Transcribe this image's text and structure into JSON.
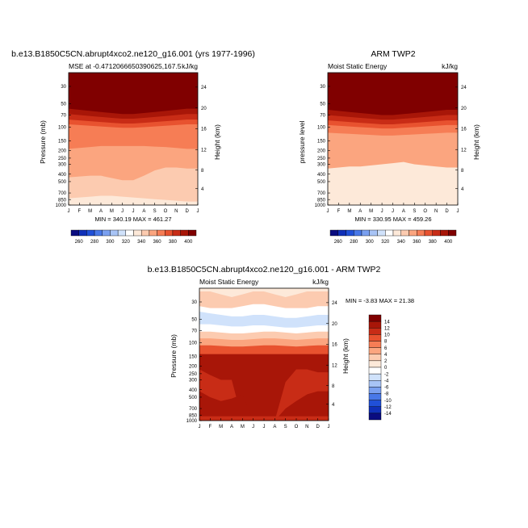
{
  "colors": {
    "bg": "#ffffff",
    "axis": "#000000",
    "mse_scale": [
      "#0a0c80",
      "#1030b8",
      "#2050d8",
      "#4878e8",
      "#7aa0f0",
      "#a8c4f6",
      "#d0e2fb",
      "#ffffff",
      "#fde9d9",
      "#fccbb0",
      "#fba57f",
      "#f67d55",
      "#e8522f",
      "#c82c16",
      "#a81608",
      "#800000"
    ],
    "diff_scale": [
      "#0a0c80",
      "#1030b8",
      "#2050d8",
      "#4878e8",
      "#7aa0f0",
      "#a8c4f6",
      "#d0e2fb",
      "#ffffff",
      "#fde9d9",
      "#fccbb0",
      "#fba57f",
      "#f67d55",
      "#e8522f",
      "#c82c16",
      "#a81608",
      "#800000"
    ]
  },
  "chart_data": [
    {
      "id": "model",
      "type": "heatmap",
      "suptitle": "b.e13.B1850C5CN.abrupt4xco2.ne120_g16.001 (yrs 1977-1996)",
      "left_label": "MSE at -0.4712066650390625,167.5",
      "right_label": "kJ/kg",
      "ylabel": "Pressure (mb)",
      "ylabel_right": "Height (km)",
      "x_ticks": [
        "J",
        "F",
        "M",
        "A",
        "M",
        "J",
        "J",
        "A",
        "S",
        "O",
        "N",
        "D",
        "J"
      ],
      "y_ticks": [
        30,
        50,
        70,
        100,
        150,
        200,
        250,
        300,
        400,
        500,
        700,
        850,
        1000
      ],
      "y_ticks_right": [
        24,
        20,
        16,
        12,
        8,
        4
      ],
      "stats": "MIN = 340.19 MAX = 461.27",
      "min": 340.19,
      "max": 461.27,
      "units": "kJ/kg",
      "colorbar_labels": [
        260,
        280,
        300,
        320,
        340,
        360,
        380,
        400
      ],
      "layers": [
        {
          "top_mb": [
            20,
            20,
            20,
            20,
            20,
            20,
            20,
            20,
            20,
            20,
            20,
            20,
            20
          ],
          "level": 15
        },
        {
          "top_mb": [
            58,
            60,
            62,
            64,
            66,
            68,
            68,
            66,
            64,
            62,
            60,
            58,
            58
          ],
          "level": 14
        },
        {
          "top_mb": [
            68,
            70,
            72,
            74,
            76,
            78,
            78,
            76,
            74,
            72,
            70,
            68,
            68
          ],
          "level": 13
        },
        {
          "top_mb": [
            80,
            82,
            84,
            86,
            88,
            90,
            90,
            88,
            86,
            84,
            82,
            80,
            80
          ],
          "level": 12
        },
        {
          "top_mb": [
            92,
            94,
            96,
            98,
            100,
            102,
            102,
            100,
            98,
            96,
            94,
            92,
            92
          ],
          "level": 11
        },
        {
          "top_mb": [
            190,
            185,
            180,
            175,
            175,
            175,
            175,
            175,
            178,
            180,
            185,
            190,
            190
          ],
          "level": 10
        },
        {
          "top_mb": [
            440,
            430,
            420,
            420,
            450,
            480,
            480,
            420,
            360,
            330,
            330,
            340,
            340
          ],
          "level": 9
        },
        {
          "top_mb": [
            820,
            800,
            780,
            760,
            760,
            780,
            800,
            820,
            840,
            860,
            880,
            900,
            900
          ],
          "level": 8
        }
      ]
    },
    {
      "id": "obs",
      "type": "heatmap",
      "suptitle": "ARM TWP2",
      "left_label": "Moist Static Energy",
      "right_label": "kJ/kg",
      "ylabel": "pressure level",
      "ylabel_right": "Height (km)",
      "x_ticks": [
        "J",
        "F",
        "M",
        "A",
        "M",
        "J",
        "J",
        "A",
        "S",
        "O",
        "N",
        "D",
        "J"
      ],
      "y_ticks": [
        30,
        50,
        70,
        100,
        150,
        200,
        250,
        300,
        400,
        500,
        700,
        850,
        1000
      ],
      "y_ticks_right": [
        24,
        20,
        16,
        12,
        8,
        4
      ],
      "stats": "MIN = 330.95 MAX = 459.26",
      "min": 330.95,
      "max": 459.26,
      "units": "kJ/kg",
      "colorbar_labels": [
        260,
        280,
        300,
        320,
        340,
        360,
        380,
        400
      ],
      "layers": [
        {
          "top_mb": [
            20,
            20,
            20,
            20,
            20,
            20,
            20,
            20,
            20,
            20,
            20,
            20,
            20
          ],
          "level": 15
        },
        {
          "top_mb": [
            60,
            62,
            64,
            66,
            68,
            70,
            70,
            68,
            66,
            64,
            62,
            60,
            60
          ],
          "level": 14
        },
        {
          "top_mb": [
            70,
            72,
            74,
            76,
            78,
            80,
            80,
            78,
            76,
            74,
            72,
            70,
            70
          ],
          "level": 13
        },
        {
          "top_mb": [
            82,
            84,
            86,
            88,
            90,
            92,
            92,
            90,
            88,
            86,
            84,
            82,
            82
          ],
          "level": 12
        },
        {
          "top_mb": [
            94,
            96,
            98,
            100,
            102,
            104,
            104,
            102,
            100,
            98,
            96,
            94,
            94
          ],
          "level": 11
        },
        {
          "top_mb": [
            118,
            120,
            122,
            124,
            126,
            128,
            128,
            126,
            124,
            122,
            120,
            118,
            118
          ],
          "level": 10
        },
        {
          "top_mb": [
            340,
            330,
            320,
            320,
            310,
            300,
            290,
            280,
            300,
            310,
            320,
            330,
            330
          ],
          "level": 8
        },
        {
          "top_mb": [
            880,
            880,
            880,
            880,
            880,
            880,
            880,
            880,
            880,
            880,
            880,
            880,
            880
          ],
          "level": 8
        }
      ]
    },
    {
      "id": "diff",
      "type": "heatmap",
      "suptitle": "b.e13.B1850C5CN.abrupt4xco2.ne120_g16.001 - ARM TWP2",
      "left_label": "Moist Static Energy",
      "right_label": "kJ/kg",
      "ylabel": "Pressure (mb)",
      "ylabel_right": "Height (km)",
      "x_ticks": [
        "J",
        "F",
        "M",
        "A",
        "M",
        "J",
        "J",
        "A",
        "S",
        "O",
        "N",
        "D",
        "J"
      ],
      "y_ticks": [
        30,
        50,
        70,
        100,
        150,
        200,
        250,
        300,
        400,
        500,
        700,
        850,
        1000
      ],
      "y_ticks_right": [
        24,
        20,
        16,
        12,
        8,
        4
      ],
      "stats": "MIN =  -3.83 MAX =  21.38",
      "min": -3.83,
      "max": 21.38,
      "units": "kJ/kg",
      "colorbar_labels": [
        14,
        12,
        10,
        8,
        6,
        4,
        2,
        0,
        -2,
        -4,
        -6,
        -8,
        -10,
        -12,
        -14
      ],
      "layers": [
        {
          "top_mb": [
            20,
            20,
            20,
            20,
            20,
            20,
            20,
            20,
            20,
            20,
            20,
            20,
            20
          ],
          "level": 8
        },
        {
          "top_mb": [
            22,
            22,
            24,
            26,
            24,
            22,
            22,
            24,
            26,
            24,
            22,
            22,
            22
          ],
          "level": 9
        },
        {
          "top_mb": [
            34,
            36,
            36,
            36,
            34,
            32,
            32,
            34,
            36,
            36,
            36,
            34,
            34
          ],
          "level": 7
        },
        {
          "top_mb": [
            40,
            42,
            44,
            46,
            46,
            44,
            44,
            46,
            48,
            48,
            46,
            44,
            44
          ],
          "level": 6
        },
        {
          "top_mb": [
            58,
            58,
            60,
            62,
            62,
            60,
            60,
            62,
            64,
            64,
            62,
            60,
            60
          ],
          "level": 7
        },
        {
          "top_mb": [
            72,
            72,
            74,
            76,
            76,
            74,
            72,
            72,
            74,
            76,
            74,
            72,
            72
          ],
          "level": 9
        },
        {
          "top_mb": [
            88,
            88,
            90,
            92,
            92,
            90,
            88,
            88,
            90,
            92,
            90,
            88,
            88
          ],
          "level": 10
        },
        {
          "top_mb": [
            108,
            108,
            110,
            112,
            112,
            110,
            108,
            108,
            110,
            112,
            110,
            108,
            108
          ],
          "level": 12
        },
        {
          "top_mb": [
            140,
            140,
            140,
            140,
            140,
            140,
            140,
            140,
            140,
            140,
            140,
            140,
            140
          ],
          "level": 14
        },
        {
          "top_mb": [
            220,
            260,
            300,
            300,
            1000,
            1000,
            1000,
            1000,
            320,
            220,
            220,
            240,
            240
          ],
          "level": 13
        },
        {
          "top_mb": [
            420,
            500,
            560,
            520,
            460,
            1000,
            1000,
            1000,
            700,
            560,
            460,
            420,
            420
          ],
          "level": 14
        },
        {
          "top_mb": [
            880,
            880,
            880,
            880,
            880,
            880,
            880,
            880,
            880,
            880,
            880,
            880,
            880
          ],
          "level": 13
        }
      ]
    }
  ]
}
